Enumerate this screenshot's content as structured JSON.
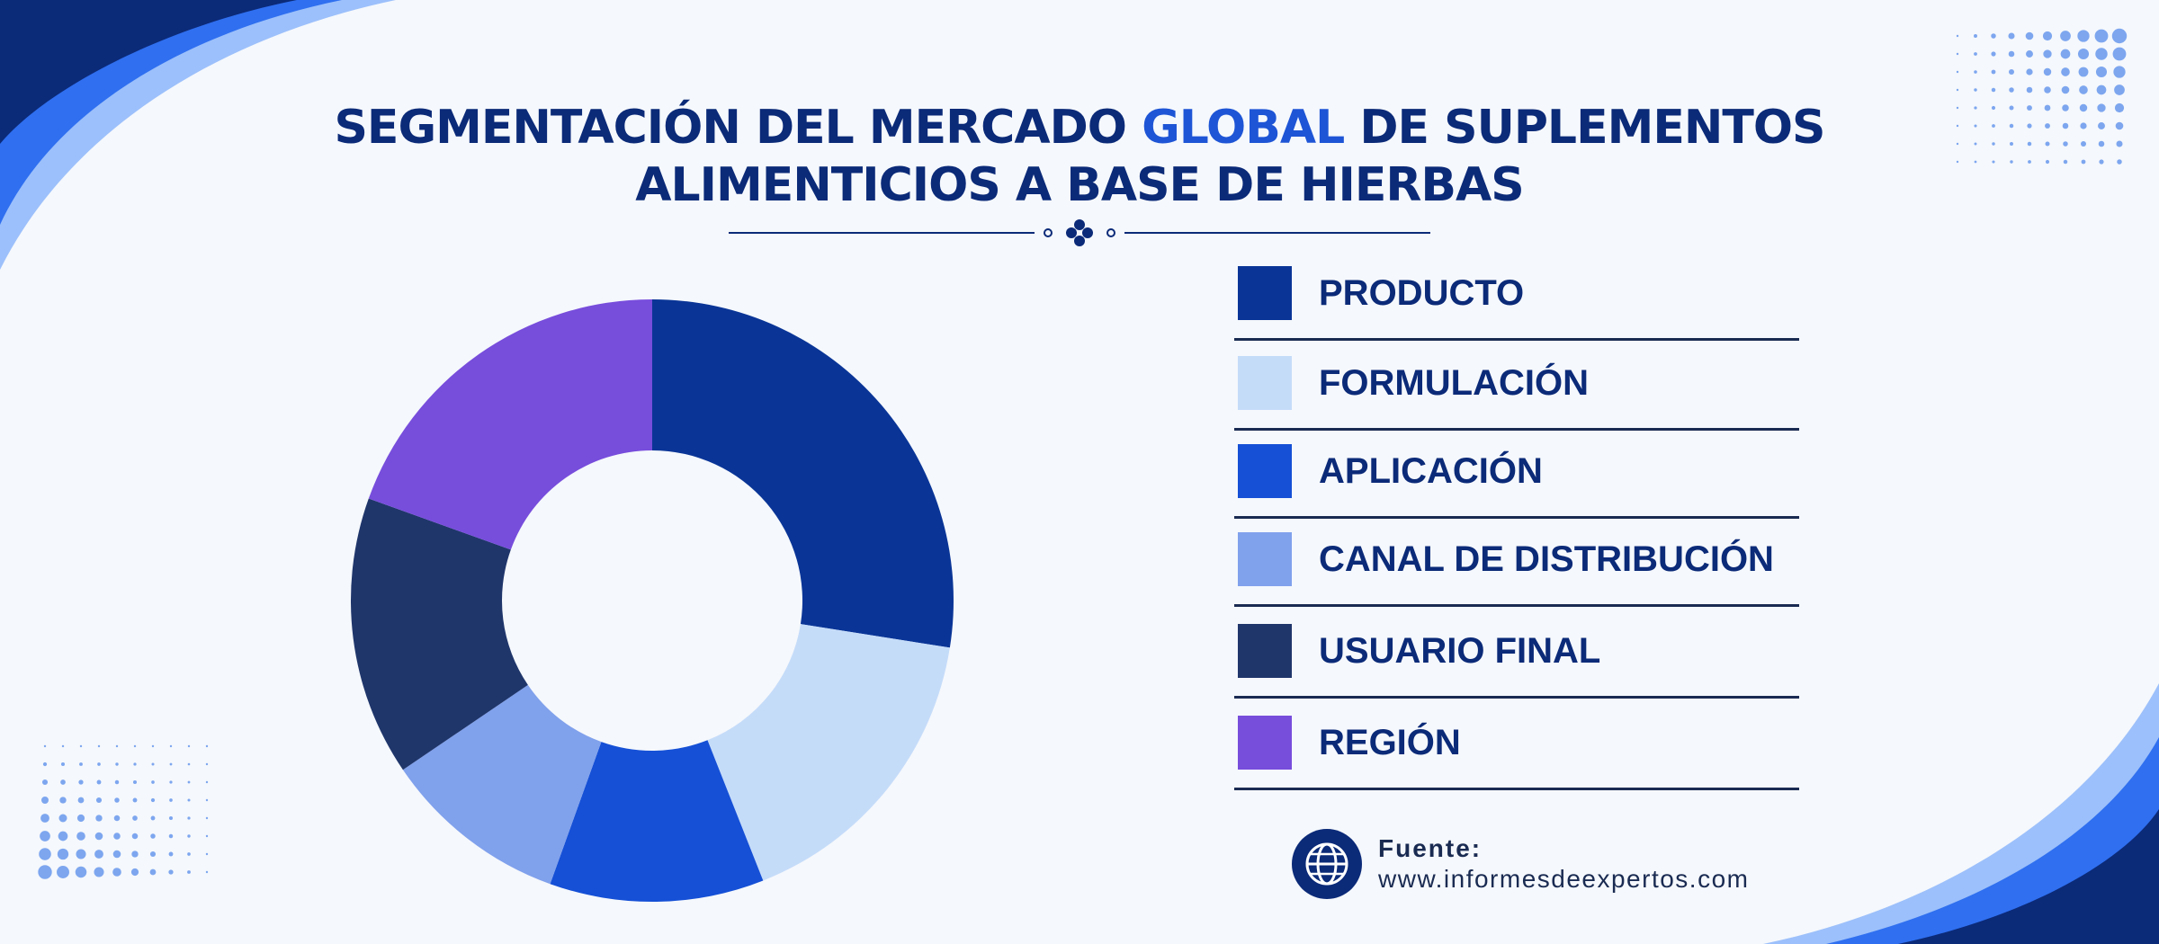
{
  "title": {
    "line1_before": "SEGMENTACIÓN DEL MERCADO ",
    "line1_accent": "GLOBAL",
    "line1_after": " DE SUPLEMENTOS",
    "line2": "ALIMENTICIOS A BASE DE HIERBAS"
  },
  "colors": {
    "title": "#0b2a78",
    "accent": "#1e55d6",
    "background": "#f5f8fc",
    "decor_dark": "#0b2a78",
    "decor_mid": "#2f6ff0",
    "decor_light": "#9cc0fb"
  },
  "chart_data": {
    "type": "pie",
    "variant": "donut",
    "categories": [
      "PRODUCTO",
      "FORMULACIÓN",
      "APLICACIÓN",
      "CANAL DE DISTRIBUCIÓN",
      "USUARIO FINAL",
      "REGIÓN"
    ],
    "values": [
      27.5,
      16.5,
      11.5,
      10,
      15,
      19.5
    ],
    "colors": [
      "#0a3597",
      "#c5dcf9",
      "#1550d6",
      "#80a1ec",
      "#1f366b",
      "#774ddc"
    ],
    "legend_position": "right"
  },
  "source": {
    "label": "Fuente:",
    "url": "www.informesdeexpertos.com",
    "icon": "globe-icon"
  }
}
